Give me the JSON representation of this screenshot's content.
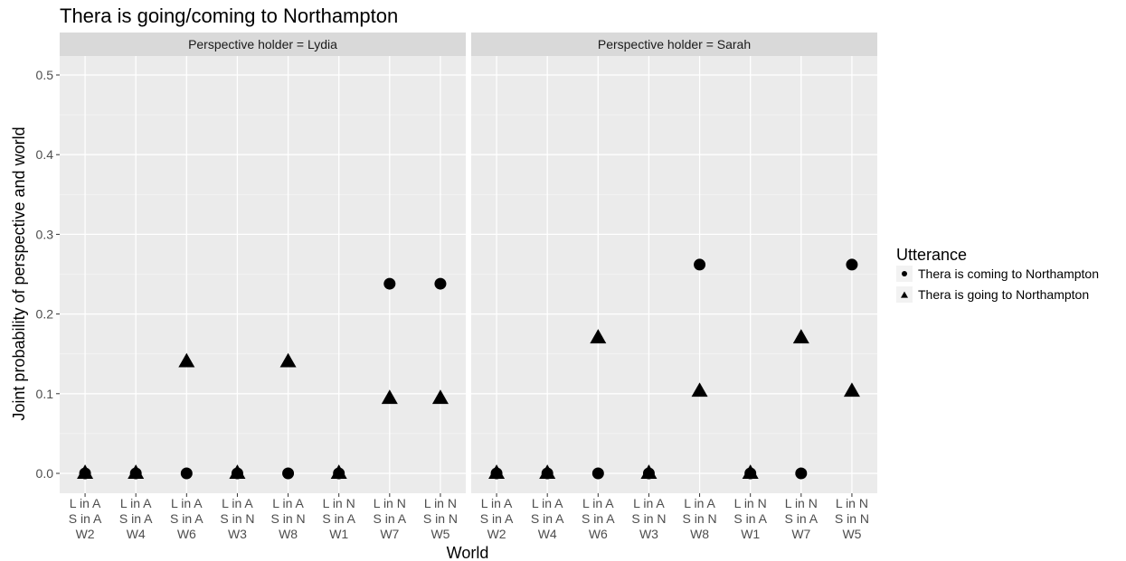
{
  "chart_data": {
    "type": "scatter",
    "title": "Thera is going/coming to Northampton",
    "xlabel": "World",
    "ylabel": "Joint probability of perspective and world",
    "ylim": [
      0,
      0.5
    ],
    "yticks": [
      "0.0",
      "0.1",
      "0.2",
      "0.3",
      "0.4",
      "0.5"
    ],
    "ytick_values": [
      0,
      0.1,
      0.2,
      0.3,
      0.4,
      0.5
    ],
    "grid": true,
    "legend": {
      "title": "Utterance",
      "position": "right",
      "entries": [
        {
          "label": "Thera is coming to Northampton",
          "shape": "circle"
        },
        {
          "label": "Thera is going to Northampton",
          "shape": "triangle"
        }
      ]
    },
    "facets": [
      {
        "strip": "Perspective holder = Lydia",
        "categories": [
          [
            "L in A",
            "S in A",
            "W2"
          ],
          [
            "L in A",
            "S in A",
            "W4"
          ],
          [
            "L in A",
            "S in A",
            "W6"
          ],
          [
            "L in A",
            "S in N",
            "W3"
          ],
          [
            "L in A",
            "S in N",
            "W8"
          ],
          [
            "L in N",
            "S in A",
            "W1"
          ],
          [
            "L in N",
            "S in A",
            "W7"
          ],
          [
            "L in N",
            "S in N",
            "W5"
          ]
        ],
        "series": [
          {
            "name": "Thera is coming to Northampton",
            "values": [
              0,
              0,
              0,
              0,
              0,
              0,
              0.238,
              0.238
            ]
          },
          {
            "name": "Thera is going to Northampton",
            "values": [
              0,
              0,
              0.14,
              0,
              0.14,
              0,
              0.094,
              0.094
            ]
          }
        ]
      },
      {
        "strip": "Perspective holder = Sarah",
        "categories": [
          [
            "L in A",
            "S in A",
            "W2"
          ],
          [
            "L in A",
            "S in A",
            "W4"
          ],
          [
            "L in A",
            "S in A",
            "W6"
          ],
          [
            "L in A",
            "S in N",
            "W3"
          ],
          [
            "L in A",
            "S in N",
            "W8"
          ],
          [
            "L in N",
            "S in A",
            "W1"
          ],
          [
            "L in N",
            "S in A",
            "W7"
          ],
          [
            "L in N",
            "S in N",
            "W5"
          ]
        ],
        "series": [
          {
            "name": "Thera is coming to Northampton",
            "values": [
              0,
              0,
              0,
              0,
              0.262,
              0,
              0,
              0.262
            ]
          },
          {
            "name": "Thera is going to Northampton",
            "values": [
              0,
              0,
              0.17,
              0,
              0.103,
              0,
              0.17,
              0.103
            ]
          }
        ]
      }
    ]
  }
}
